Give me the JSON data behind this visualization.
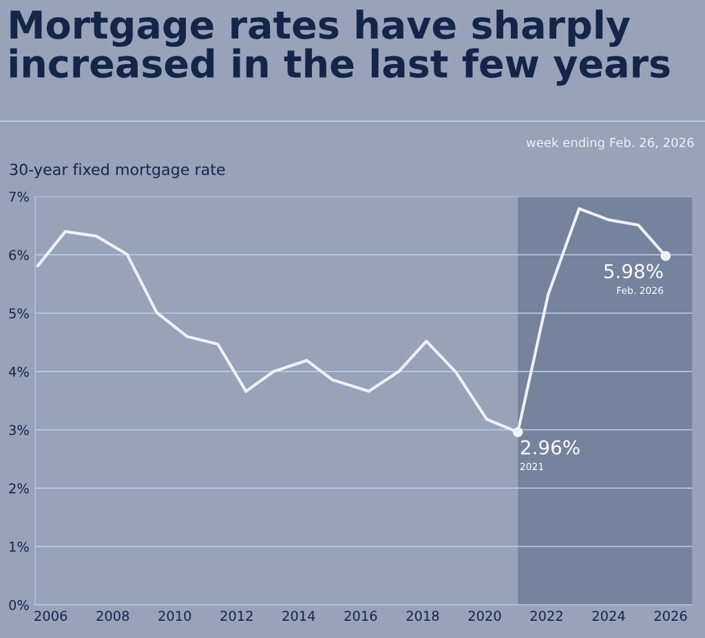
{
  "chart_data": {
    "type": "line",
    "title": "Mortgage rates have sharply\nincreased in the last few years",
    "ylabel": "30-year fixed mortgage rate",
    "x": [
      2005.58,
      2006.47,
      2007.47,
      2008.46,
      2009.42,
      2010.4,
      2011.39,
      2012.3,
      2013.19,
      2014.26,
      2015.08,
      2016.26,
      2017.23,
      2018.12,
      2019.07,
      2020.07,
      2021.07,
      2022.05,
      2023.05,
      2024.0,
      2024.96,
      2025.84
    ],
    "series": [
      {
        "color": "#eef2f8",
        "marker": "none",
        "values": [
          5.81,
          6.4,
          6.32,
          6.01,
          5.01,
          4.6,
          4.47,
          3.66,
          4.0,
          4.19,
          3.86,
          3.66,
          4.0,
          4.52,
          3.99,
          3.18,
          2.96,
          5.32,
          6.79,
          6.6,
          6.51,
          5.98
        ]
      },
      {
        "type": "scatter",
        "marker": "circle",
        "color": "#eef2f8",
        "x": [
          2021.07,
          2025.84
        ],
        "values": [
          2.96,
          5.98
        ]
      }
    ],
    "xlim": [
      2005.5,
      2026.7
    ],
    "xticks": [
      2006,
      2008,
      2010,
      2012,
      2014,
      2016,
      2018,
      2020,
      2022,
      2024,
      2026
    ],
    "ylim": [
      0,
      7
    ],
    "yticks": [
      {
        "value": 0,
        "label": "0%"
      },
      {
        "value": 1,
        "label": "1%"
      },
      {
        "value": 2,
        "label": "2%"
      },
      {
        "value": 3,
        "label": "3%"
      },
      {
        "value": 4,
        "label": "4%"
      },
      {
        "value": 5,
        "label": "5%"
      },
      {
        "value": 6,
        "label": "6%"
      },
      {
        "value": 7,
        "label": "7%"
      }
    ],
    "bands": [
      {
        "axis": "x",
        "from": 2021.07,
        "to": 2026.7,
        "color": "#76839d"
      }
    ],
    "grid": "y",
    "line_style": "solid",
    "legend": false,
    "annotations": [
      {
        "text": "2.96%",
        "x": 2021.07,
        "y": 2.96
      },
      "2021",
      {
        "text": "5.98%",
        "x": 2025.84,
        "y": 5.98
      },
      "Feb. 2026",
      "week ending Feb. 26, 2026"
    ]
  }
}
